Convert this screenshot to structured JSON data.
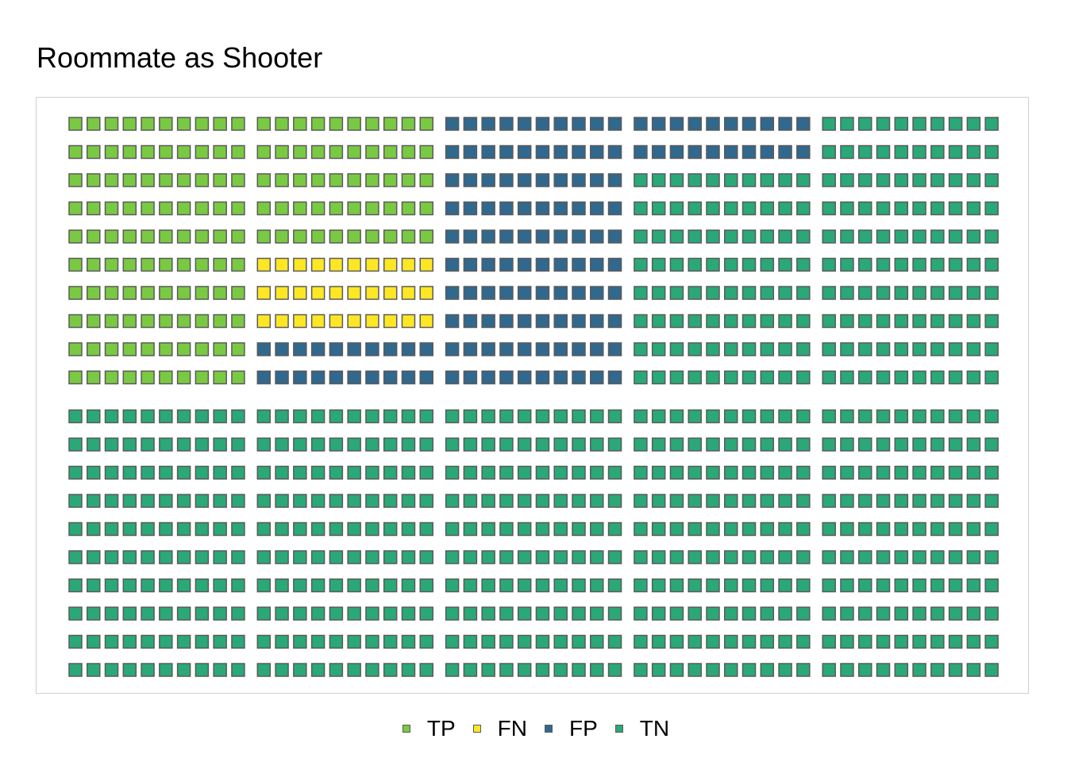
{
  "title": "Roommate as Shooter",
  "colors": {
    "TP": "#7ac943",
    "FN": "#fde725",
    "FP": "#31688e",
    "TN": "#2aa878",
    "cell_border": "#5a5a5a",
    "panel_border": "#cfcfcf"
  },
  "chart_data": {
    "type": "waffle",
    "title": "Roommate as Shooter",
    "total": 1000,
    "rows": 20,
    "columns": 50,
    "block_rows": 2,
    "block_columns": 5,
    "fill_order": "top row left-to-right, then next row, within each 10x10 block; blocks left-to-right along the top band first",
    "categories": [
      "TP",
      "FN",
      "FP",
      "TN"
    ],
    "values": [
      150,
      30,
      140,
      680
    ],
    "legend_position": "bottom"
  },
  "legend": {
    "items": [
      {
        "key": "TP",
        "label": "TP"
      },
      {
        "key": "FN",
        "label": "FN"
      },
      {
        "key": "FP",
        "label": "FP"
      },
      {
        "key": "TN",
        "label": "TN"
      }
    ]
  }
}
